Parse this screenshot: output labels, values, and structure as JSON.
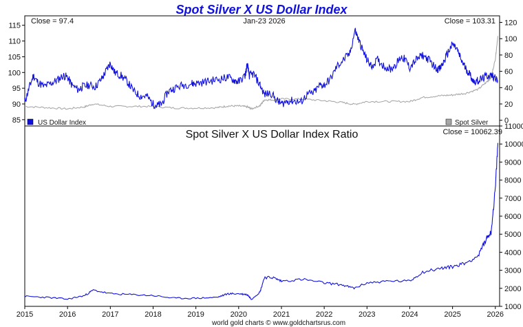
{
  "chart_data": [
    {
      "type": "line",
      "title": "Spot Silver X US Dollar Index",
      "date_label": "Jan-23  2026",
      "left_close": "Close = 97.4",
      "right_close": "Close = 103.31",
      "left_axis": {
        "ticks": [
          85,
          90,
          95,
          100,
          105,
          110,
          115
        ],
        "ylim": [
          83,
          118
        ]
      },
      "right_axis": {
        "ticks": [
          0,
          20,
          40,
          60,
          80,
          100,
          120
        ],
        "ylim": [
          -7,
          128
        ]
      },
      "x_axis": {
        "ticks": [
          "2015",
          "2016",
          "2017",
          "2018",
          "2019",
          "2020",
          "2021",
          "2022",
          "2023",
          "2024",
          "2025",
          "2026"
        ],
        "xlim": [
          2015.0,
          2026.1
        ]
      },
      "legend": {
        "left": "US Dollar Index",
        "right": "Spot Silver"
      },
      "colors": {
        "usd": "#1010dd",
        "silver": "#a8a8a8"
      },
      "series": [
        {
          "name": "US Dollar Index",
          "axis": "left",
          "x": [
            2015.0,
            2015.1,
            2015.2,
            2015.3,
            2015.45,
            2015.6,
            2015.75,
            2015.9,
            2016.0,
            2016.1,
            2016.25,
            2016.35,
            2016.5,
            2016.65,
            2016.8,
            2016.9,
            2017.0,
            2017.1,
            2017.25,
            2017.4,
            2017.55,
            2017.7,
            2017.85,
            2018.0,
            2018.1,
            2018.2,
            2018.35,
            2018.5,
            2018.7,
            2018.9,
            2019.0,
            2019.2,
            2019.4,
            2019.6,
            2019.75,
            2019.9,
            2020.0,
            2020.15,
            2020.2,
            2020.25,
            2020.35,
            2020.5,
            2020.6,
            2020.75,
            2020.9,
            2021.0,
            2021.15,
            2021.3,
            2021.45,
            2021.6,
            2021.75,
            2021.9,
            2022.0,
            2022.15,
            2022.3,
            2022.45,
            2022.6,
            2022.72,
            2022.8,
            2022.9,
            2023.0,
            2023.1,
            2023.25,
            2023.4,
            2023.55,
            2023.7,
            2023.8,
            2023.9,
            2024.0,
            2024.15,
            2024.3,
            2024.45,
            2024.6,
            2024.7,
            2024.8,
            2024.9,
            2025.0,
            2025.1,
            2025.2,
            2025.3,
            2025.4,
            2025.5,
            2025.6,
            2025.7,
            2025.8,
            2025.9,
            2026.0,
            2026.06
          ],
          "values": [
            90.5,
            95,
            99,
            97,
            95.5,
            96.5,
            97.5,
            99,
            98.5,
            96,
            94.5,
            95.5,
            96,
            95.5,
            98,
            100.5,
            103,
            100,
            99,
            97,
            94,
            92.5,
            92.5,
            90,
            89.5,
            90,
            94,
            95,
            96,
            96.5,
            96.5,
            97,
            97.5,
            98,
            98.5,
            97.5,
            97,
            99,
            102.5,
            99,
            99.5,
            96,
            93,
            93.5,
            91,
            90,
            91,
            91,
            90.5,
            93,
            93.5,
            96,
            96,
            98,
            102,
            104,
            106,
            113.5,
            110.5,
            107,
            104,
            102,
            104,
            102,
            101,
            103,
            105,
            104,
            101.5,
            104,
            105.5,
            104,
            101.5,
            101,
            103.5,
            106.5,
            109,
            107.5,
            104,
            101.5,
            99.5,
            97,
            97.5,
            98,
            99,
            99,
            98.5,
            97.4
          ]
        },
        {
          "name": "Spot Silver",
          "axis": "right",
          "x": [
            2015.0,
            2015.5,
            2016.0,
            2016.4,
            2016.6,
            2017.0,
            2017.5,
            2018.0,
            2018.5,
            2019.0,
            2019.5,
            2019.75,
            2020.0,
            2020.2,
            2020.3,
            2020.5,
            2020.6,
            2020.8,
            2021.0,
            2021.5,
            2022.0,
            2022.4,
            2022.7,
            2023.0,
            2023.5,
            2024.0,
            2024.3,
            2024.7,
            2025.0,
            2025.3,
            2025.6,
            2025.8,
            2025.9,
            2026.0,
            2026.06
          ],
          "values": [
            17,
            15.5,
            14,
            16.5,
            20,
            17,
            17,
            17,
            15,
            15,
            15.5,
            17.5,
            17.5,
            16.5,
            14,
            18,
            25,
            25,
            26,
            26,
            24,
            22,
            19.5,
            23,
            23,
            23,
            28,
            30,
            31,
            33,
            38,
            47,
            52,
            75,
            103.31
          ]
        }
      ]
    },
    {
      "type": "line",
      "title": "Spot Silver X US Dollar Index Ratio",
      "close": "Close = 10062.39",
      "y_axis": {
        "ticks": [
          1000,
          2000,
          3000,
          4000,
          5000,
          6000,
          7000,
          8000,
          9000,
          10000,
          11000
        ],
        "ylim": [
          1000,
          11000
        ]
      },
      "x_axis": {
        "ticks": [
          "2015",
          "2016",
          "2017",
          "2018",
          "2019",
          "2020",
          "2021",
          "2022",
          "2023",
          "2024",
          "2025",
          "2026"
        ],
        "xlim": [
          2015.0,
          2026.1
        ]
      },
      "series": [
        {
          "name": "Spot Silver X US Dollar Index Ratio",
          "x": [
            2015.0,
            2015.5,
            2016.0,
            2016.4,
            2016.6,
            2017.0,
            2017.5,
            2018.0,
            2018.5,
            2019.0,
            2019.5,
            2019.75,
            2020.0,
            2020.2,
            2020.3,
            2020.5,
            2020.6,
            2020.8,
            2021.0,
            2021.5,
            2022.0,
            2022.4,
            2022.7,
            2023.0,
            2023.5,
            2024.0,
            2024.3,
            2024.7,
            2025.0,
            2025.3,
            2025.6,
            2025.8,
            2025.9,
            2026.0,
            2026.06
          ],
          "values": [
            1550,
            1500,
            1400,
            1600,
            1900,
            1700,
            1650,
            1600,
            1450,
            1450,
            1500,
            1700,
            1700,
            1650,
            1400,
            1800,
            2600,
            2600,
            2400,
            2500,
            2300,
            2200,
            2000,
            2300,
            2400,
            2400,
            2900,
            3100,
            3200,
            3400,
            3800,
            4800,
            5100,
            7500,
            10062.39
          ]
        }
      ]
    }
  ],
  "footer": "world gold charts © www.goldchartsrus.com"
}
